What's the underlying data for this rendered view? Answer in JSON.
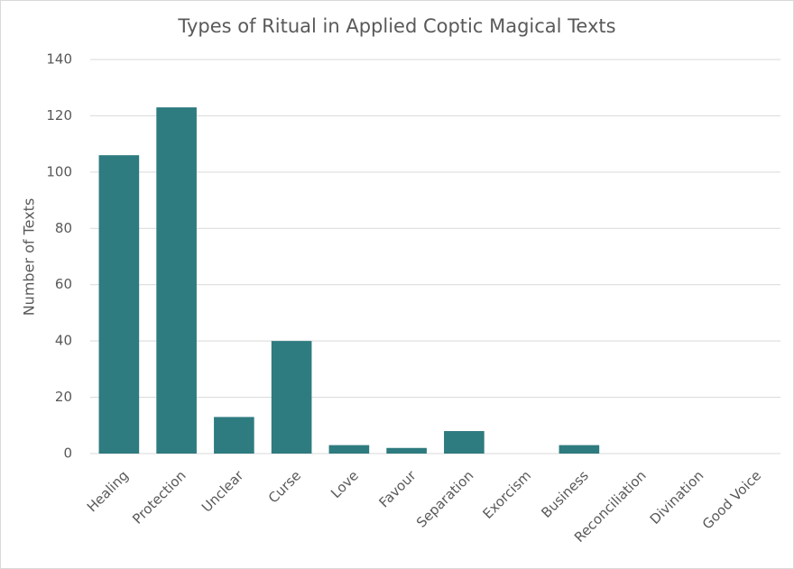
{
  "chart_data": {
    "type": "bar",
    "title": "Types of Ritual in Applied Coptic Magical Texts",
    "y_label": "Number of Texts",
    "categories": [
      "Healing",
      "Protection",
      "Unclear",
      "Curse",
      "Love",
      "Favour",
      "Separation",
      "Exorcism",
      "Business",
      "Reconciliation",
      "Divination",
      "Good Voice"
    ],
    "values": [
      106,
      123,
      13,
      40,
      3,
      2,
      8,
      0,
      3,
      0,
      0,
      0
    ],
    "color": "#2e7b80",
    "ylim": [
      0,
      140
    ],
    "yticks": [
      0,
      20,
      40,
      60,
      80,
      100,
      120,
      140
    ],
    "grid": true
  }
}
